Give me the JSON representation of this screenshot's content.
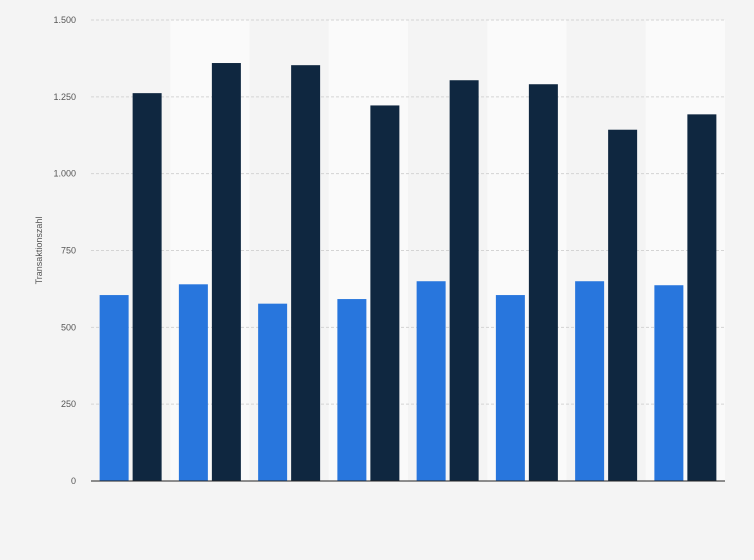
{
  "chart_data": {
    "type": "bar",
    "title": "",
    "xlabel": "",
    "ylabel": "Transaktionszahl",
    "ylim": [
      0,
      1500
    ],
    "yticks": [
      0,
      250,
      500,
      750,
      1000,
      1250,
      1500
    ],
    "ytick_labels": [
      "0",
      "250",
      "500",
      "750",
      "1.000",
      "1.250",
      "1.500"
    ],
    "categories": [
      "",
      "",
      "",
      "",
      "",
      "",
      "",
      ""
    ],
    "grid": true,
    "legend": "none",
    "series": [
      {
        "values": [
          605,
          640,
          577,
          592,
          650,
          605,
          650,
          637
        ],
        "color": "#2876dd"
      },
      {
        "values": [
          1262,
          1360,
          1353,
          1222,
          1304,
          1291,
          1143,
          1193
        ],
        "color": "#0f2740"
      }
    ],
    "colors": {
      "background": "#f4f4f4",
      "band_light": "#fafafa",
      "gridline": "#d4d4d4",
      "axis": "#222222"
    }
  }
}
